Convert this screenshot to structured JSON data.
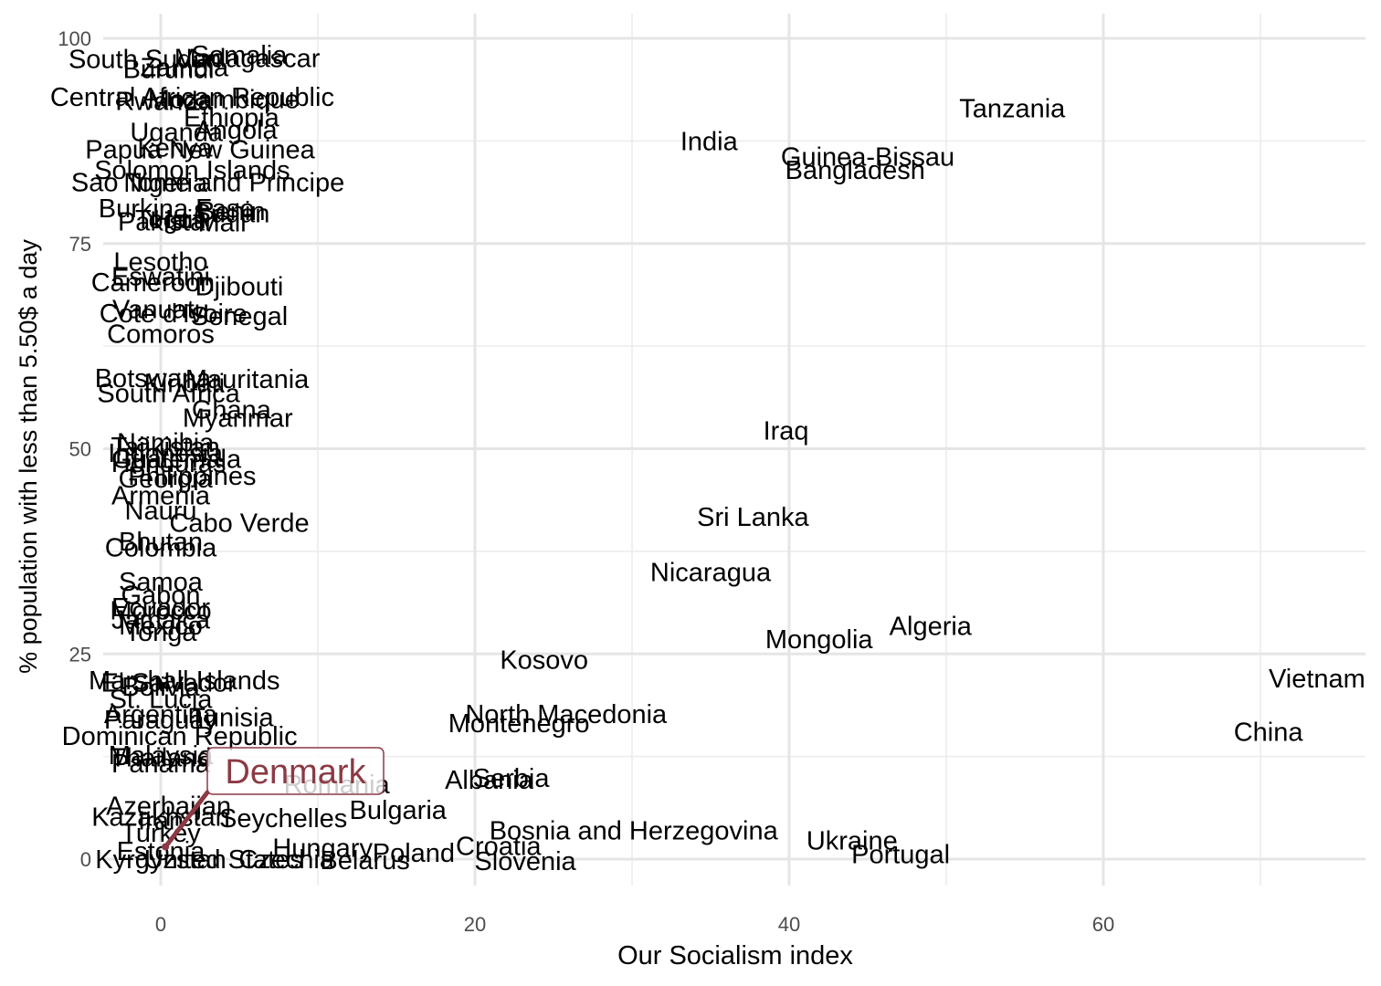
{
  "chart_data": {
    "type": "scatter",
    "title": "",
    "xlabel": "Our Socialism index",
    "ylabel": "% population with less than 5.50$ a day",
    "xlim": [
      -3.7,
      76.3
    ],
    "ylim": [
      -5,
      102.3
    ],
    "x_ticks": [
      0,
      20,
      40,
      60
    ],
    "y_ticks": [
      0,
      25,
      50,
      75,
      100
    ],
    "grid": true,
    "highlight": {
      "label": "Denmark",
      "x": 0.3,
      "y": 1.5,
      "color": "#8b3a44"
    },
    "points": [
      {
        "label": "Tanzania",
        "x": 54.2,
        "y": 91.5
      },
      {
        "label": "India",
        "x": 34.9,
        "y": 87.5
      },
      {
        "label": "Guinea-Bissau",
        "x": 45.0,
        "y": 85.6
      },
      {
        "label": "Bangladesh",
        "x": 44.2,
        "y": 84.0
      },
      {
        "label": "Iraq",
        "x": 39.8,
        "y": 52.2
      },
      {
        "label": "Sri Lanka",
        "x": 37.7,
        "y": 41.7
      },
      {
        "label": "Nicaragua",
        "x": 35.0,
        "y": 35.0
      },
      {
        "label": "Algeria",
        "x": 49.0,
        "y": 28.4
      },
      {
        "label": "Mongolia",
        "x": 41.9,
        "y": 26.8
      },
      {
        "label": "Kosovo",
        "x": 24.4,
        "y": 24.3
      },
      {
        "label": "Vietnam",
        "x": 73.6,
        "y": 22.0
      },
      {
        "label": "China",
        "x": 70.5,
        "y": 15.5
      },
      {
        "label": "North Macedonia",
        "x": 25.8,
        "y": 17.7
      },
      {
        "label": "Montenegro",
        "x": 22.8,
        "y": 16.6
      },
      {
        "label": "Albania",
        "x": 20.9,
        "y": 9.7
      },
      {
        "label": "Serbia",
        "x": 22.3,
        "y": 9.9
      },
      {
        "label": "Romania",
        "x": 11.2,
        "y": 9.1
      },
      {
        "label": "Bulgaria",
        "x": 15.1,
        "y": 6.0
      },
      {
        "label": "Bosnia and Herzegovina",
        "x": 30.1,
        "y": 3.5
      },
      {
        "label": "Ukraine",
        "x": 44.0,
        "y": 2.3
      },
      {
        "label": "Portugal",
        "x": 47.1,
        "y": 0.6
      },
      {
        "label": "Croatia",
        "x": 21.5,
        "y": 1.6
      },
      {
        "label": "Slovenia",
        "x": 23.2,
        "y": -0.2
      },
      {
        "label": "Poland",
        "x": 16.1,
        "y": 0.8
      },
      {
        "label": "Hungary",
        "x": 10.3,
        "y": 1.4
      },
      {
        "label": "Belarus",
        "x": 13.0,
        "y": -0.1
      },
      {
        "label": "Seychelles",
        "x": 7.8,
        "y": 5.0
      },
      {
        "label": "South Sudan",
        "x": -1.0,
        "y": 97.5
      },
      {
        "label": "Madagascar",
        "x": 5.5,
        "y": 97.6
      },
      {
        "label": "Somalia",
        "x": 5.0,
        "y": 98.0
      },
      {
        "label": "Zambia",
        "x": 1.5,
        "y": 96.5
      },
      {
        "label": "Burundi",
        "x": 0.5,
        "y": 96.3
      },
      {
        "label": "Central African Republic",
        "x": 2.0,
        "y": 92.9
      },
      {
        "label": "Mozambique",
        "x": 4.0,
        "y": 92.6
      },
      {
        "label": "Rwanda",
        "x": 0.2,
        "y": 92.4
      },
      {
        "label": "Ethiopia",
        "x": 4.5,
        "y": 90.4
      },
      {
        "label": "Uganda",
        "x": 1.0,
        "y": 88.6
      },
      {
        "label": "Angola",
        "x": 4.8,
        "y": 88.9
      },
      {
        "label": "Kenya",
        "x": 0.9,
        "y": 86.7
      },
      {
        "label": "Papua New Guinea",
        "x": 2.5,
        "y": 86.5
      },
      {
        "label": "Solomon Islands",
        "x": 2.0,
        "y": 84.0
      },
      {
        "label": "Sao Tome and Principe",
        "x": 3.0,
        "y": 82.5
      },
      {
        "label": "Nigeria",
        "x": 0.3,
        "y": 82.4
      },
      {
        "label": "Burkina Faso",
        "x": 1.0,
        "y": 79.3
      },
      {
        "label": "Benin",
        "x": 4.5,
        "y": 79.0
      },
      {
        "label": "Sudan",
        "x": 4.5,
        "y": 78.7
      },
      {
        "label": "Haiti",
        "x": 1.2,
        "y": 78.0
      },
      {
        "label": "Pakistan",
        "x": 0.5,
        "y": 77.7
      },
      {
        "label": "Mali",
        "x": 3.9,
        "y": 77.6
      },
      {
        "label": "Togo",
        "x": 0.2,
        "y": 78.0
      },
      {
        "label": "Lesotho",
        "x": 0.0,
        "y": 72.8
      },
      {
        "label": "Eswatini",
        "x": 0.0,
        "y": 71.0
      },
      {
        "label": "Cameroon",
        "x": -0.5,
        "y": 70.3
      },
      {
        "label": "Djibouti",
        "x": 5.0,
        "y": 69.8
      },
      {
        "label": "Vanuatu",
        "x": 0.0,
        "y": 67.0
      },
      {
        "label": "Cote d'Ivoire",
        "x": 0.8,
        "y": 66.5
      },
      {
        "label": "Senegal",
        "x": 5.0,
        "y": 66.2
      },
      {
        "label": "Comoros",
        "x": 0.0,
        "y": 64.0
      },
      {
        "label": "Botswana",
        "x": -0.5,
        "y": 58.6
      },
      {
        "label": "Mauritania",
        "x": 5.5,
        "y": 58.5
      },
      {
        "label": "Kiribati",
        "x": 1.5,
        "y": 58.0
      },
      {
        "label": "South Africa",
        "x": 0.5,
        "y": 56.8
      },
      {
        "label": "Ghana",
        "x": 4.5,
        "y": 54.8
      },
      {
        "label": "Myanmar",
        "x": 4.9,
        "y": 53.8
      },
      {
        "label": "Namibia",
        "x": 0.3,
        "y": 50.8
      },
      {
        "label": "Tajikistan",
        "x": 0.3,
        "y": 50.3
      },
      {
        "label": "Indonesia",
        "x": 0.3,
        "y": 49.5
      },
      {
        "label": "Guatemala",
        "x": 1.0,
        "y": 48.8
      },
      {
        "label": "Honduras",
        "x": 0.5,
        "y": 48.3
      },
      {
        "label": "Philippines",
        "x": 2.0,
        "y": 46.7
      },
      {
        "label": "Georgia",
        "x": 0.3,
        "y": 46.4
      },
      {
        "label": "Armenia",
        "x": 0.0,
        "y": 44.3
      },
      {
        "label": "Nauru",
        "x": 0.0,
        "y": 42.5
      },
      {
        "label": "Cabo Verde",
        "x": 5.0,
        "y": 41.0
      },
      {
        "label": "Bhutan",
        "x": 0.0,
        "y": 38.7
      },
      {
        "label": "Colombia",
        "x": 0.0,
        "y": 38.0
      },
      {
        "label": "Samoa",
        "x": 0.0,
        "y": 33.8
      },
      {
        "label": "Gabon",
        "x": 0.0,
        "y": 32.2
      },
      {
        "label": "Ecuador",
        "x": 0.0,
        "y": 30.7
      },
      {
        "label": "Morocco",
        "x": 0.0,
        "y": 30.3
      },
      {
        "label": "Jamaica",
        "x": 0.0,
        "y": 29.2
      },
      {
        "label": "Mexico",
        "x": 0.0,
        "y": 28.5
      },
      {
        "label": "Tonga",
        "x": 0.0,
        "y": 27.7
      },
      {
        "label": "Marshall Islands",
        "x": 1.5,
        "y": 21.8
      },
      {
        "label": "El Salvador",
        "x": 0.5,
        "y": 21.5
      },
      {
        "label": "Bolivia",
        "x": 0.0,
        "y": 21.0
      },
      {
        "label": "St. Lucia",
        "x": 0.0,
        "y": 19.5
      },
      {
        "label": "Argentina",
        "x": 0.0,
        "y": 17.7
      },
      {
        "label": "Tunisia",
        "x": 4.5,
        "y": 17.3
      },
      {
        "label": "Paraguay",
        "x": 0.0,
        "y": 17.0
      },
      {
        "label": "Dominican Republic",
        "x": 1.2,
        "y": 15.0
      },
      {
        "label": "Malaysia",
        "x": 0.0,
        "y": 12.7
      },
      {
        "label": "Thailand",
        "x": 0.0,
        "y": 12.4
      },
      {
        "label": "Panama",
        "x": 0.0,
        "y": 11.7
      },
      {
        "label": "Azerbaijan",
        "x": 0.5,
        "y": 6.5
      },
      {
        "label": "Kazakhstan",
        "x": 0.0,
        "y": 5.2
      },
      {
        "label": "Iran",
        "x": 0.0,
        "y": 4.7
      },
      {
        "label": "Turkey",
        "x": 0.0,
        "y": 3.2
      },
      {
        "label": "Estonia",
        "x": 0.0,
        "y": 1.0
      },
      {
        "label": "Kyrgyzstan",
        "x": 0.0,
        "y": 0.0
      },
      {
        "label": "United States",
        "x": 4.0,
        "y": 0.0
      },
      {
        "label": "Czechia",
        "x": 8.0,
        "y": 0.0
      }
    ]
  }
}
